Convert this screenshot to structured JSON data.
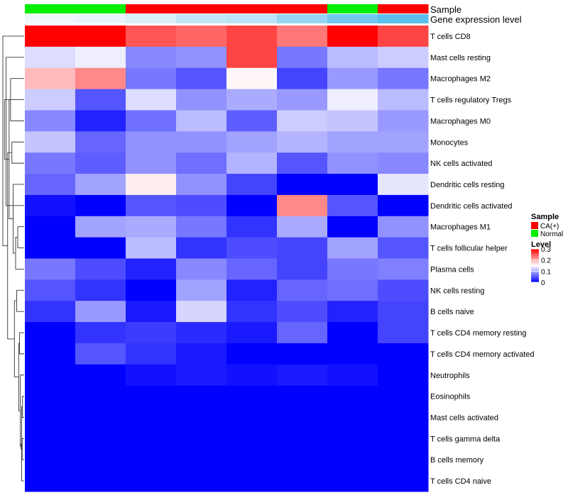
{
  "chart_data": {
    "type": "heatmap",
    "annotation_labels": {
      "sample": "Sample",
      "expression": "Gene expression level"
    },
    "columns": [
      {
        "sample": "Normal",
        "expression": 0.0
      },
      {
        "sample": "Normal",
        "expression": 0.05
      },
      {
        "sample": "CA(+)",
        "expression": 0.15
      },
      {
        "sample": "CA(+)",
        "expression": 0.3
      },
      {
        "sample": "CA(+)",
        "expression": 0.35
      },
      {
        "sample": "CA(+)",
        "expression": 0.6
      },
      {
        "sample": "Normal",
        "expression": 0.85
      },
      {
        "sample": "CA(+)",
        "expression": 1.0
      }
    ],
    "rows": [
      "T cells CD8",
      "Mast cells resting",
      "Macrophages M2",
      "T cells regulatory  Tregs",
      "Macrophages M0",
      "Monocytes",
      "NK cells activated",
      "Dendritic cells resting",
      "Dendritic cells activated",
      "Macrophages M1",
      "T cells follicular helper",
      "Plasma cells",
      "NK cells resting",
      "B cells naive",
      "T cells CD4 memory resting",
      "T cells CD4 memory activated",
      "Neutrophils",
      "Eosinophils",
      "Mast cells activated",
      "T cells gamma delta",
      "B cells memory",
      "T cells CD4 naive"
    ],
    "values": [
      [
        0.3,
        0.3,
        0.25,
        0.24,
        0.26,
        0.23,
        0.3,
        0.26
      ],
      [
        0.13,
        0.14,
        0.08,
        0.085,
        0.26,
        0.07,
        0.11,
        0.12
      ],
      [
        0.19,
        0.22,
        0.07,
        0.05,
        0.155,
        0.04,
        0.09,
        0.07
      ],
      [
        0.12,
        0.05,
        0.13,
        0.085,
        0.1,
        0.09,
        0.14,
        0.11
      ],
      [
        0.08,
        0.02,
        0.065,
        0.11,
        0.055,
        0.12,
        0.115,
        0.09
      ],
      [
        0.115,
        0.06,
        0.085,
        0.085,
        0.095,
        0.105,
        0.095,
        0.095
      ],
      [
        0.07,
        0.055,
        0.085,
        0.065,
        0.105,
        0.05,
        0.085,
        0.08
      ],
      [
        0.06,
        0.095,
        0.16,
        0.085,
        0.04,
        0.0,
        0.0,
        0.135
      ],
      [
        0.01,
        0.0,
        0.05,
        0.045,
        0.0,
        0.22,
        0.05,
        0.0
      ],
      [
        0.0,
        0.095,
        0.1,
        0.07,
        0.03,
        0.1,
        0.0,
        0.085
      ],
      [
        0.0,
        0.0,
        0.11,
        0.03,
        0.045,
        0.04,
        0.095,
        0.05
      ],
      [
        0.07,
        0.045,
        0.02,
        0.08,
        0.06,
        0.04,
        0.07,
        0.075
      ],
      [
        0.05,
        0.03,
        0.0,
        0.095,
        0.02,
        0.06,
        0.065,
        0.045
      ],
      [
        0.03,
        0.09,
        0.015,
        0.125,
        0.03,
        0.045,
        0.02,
        0.04
      ],
      [
        0.0,
        0.03,
        0.035,
        0.025,
        0.015,
        0.06,
        0.0,
        0.04
      ],
      [
        0.0,
        0.05,
        0.03,
        0.015,
        0.0,
        0.0,
        0.0,
        0.0
      ],
      [
        0.0,
        0.0,
        0.01,
        0.015,
        0.01,
        0.015,
        0.01,
        0.0
      ],
      [
        0.0,
        0.0,
        0.0,
        0.0,
        0.0,
        0.0,
        0.0,
        0.0
      ],
      [
        0.0,
        0.0,
        0.0,
        0.0,
        0.0,
        0.0,
        0.0,
        0.0
      ],
      [
        0.0,
        0.0,
        0.0,
        0.0,
        0.0,
        0.0,
        0.0,
        0.0
      ],
      [
        0.0,
        0.0,
        0.0,
        0.0,
        0.0,
        0.0,
        0.0,
        0.0
      ],
      [
        0.0,
        0.0,
        0.0,
        0.0,
        0.0,
        0.0,
        0.0,
        0.0
      ]
    ],
    "row_dendrogram": [
      [
        17,
        18
      ],
      [
        19,
        20
      ],
      [
        21,
        22
      ],
      [
        23,
        24
      ],
      [
        16,
        25
      ],
      [
        14,
        15
      ],
      [
        26,
        27
      ],
      [
        9,
        10
      ],
      [
        12,
        13
      ],
      [
        11,
        29
      ],
      [
        28,
        30
      ],
      [
        7,
        31
      ],
      [
        5,
        6
      ],
      [
        2,
        4
      ],
      [
        3,
        33
      ],
      [
        32,
        34
      ],
      [
        1,
        8
      ],
      [
        35,
        36
      ],
      [
        0,
        37
      ]
    ],
    "legend": {
      "sample_title": "Sample",
      "sample_entries": [
        {
          "label": "CA(+)",
          "color": "#ff0000"
        },
        {
          "label": "Normal",
          "color": "#00ee00"
        }
      ],
      "level_title": "Level",
      "level_ticks": [
        "0.3",
        "0.2",
        "0.1",
        "0"
      ],
      "level_range": [
        0,
        0.3
      ]
    },
    "colors": {
      "low": "#0000ff",
      "mid": "#ffffff",
      "high": "#ff0000",
      "expression_low": "#f0f8fc",
      "expression_high": "#5bc0eb"
    }
  }
}
